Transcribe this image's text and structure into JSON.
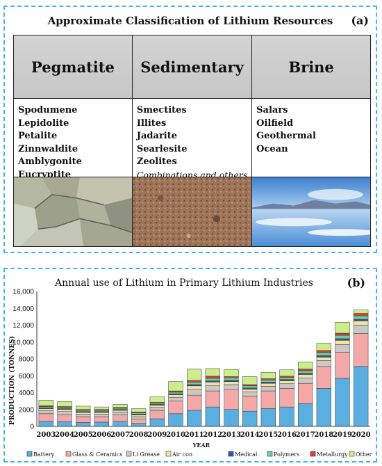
{
  "panel_a": {
    "title": "Approximate Classification of Lithium Resources",
    "tag": "(a)",
    "columns": [
      {
        "header": "Pegmatite",
        "items": [
          "Spodumene",
          "Lepidolite",
          "Petalite",
          "Zinnwaldite",
          "Amblygonite",
          "Eucryptite"
        ],
        "note": "",
        "image": "mineral-rocks-photo"
      },
      {
        "header": "Sedimentary",
        "items": [
          "Smectites",
          "Illites",
          "Jadarite",
          "Searlesite",
          "Zeolites"
        ],
        "note": "Combinations and others",
        "image": "soil-photo"
      },
      {
        "header": "Brine",
        "items": [
          "Salars",
          "Oilfield",
          "Geothermal",
          "Ocean"
        ],
        "note": "",
        "image": "salt-flat-photo"
      }
    ]
  },
  "panel_b": {
    "tag": "(b)"
  },
  "chart_data": {
    "type": "bar",
    "stacked": true,
    "title": "Annual use of Lithium in Primary Lithium Industries",
    "xlabel": "YEAR",
    "ylabel": "PRODUCTION (TONNES)",
    "ylim": [
      0,
      16000
    ],
    "yticks": [
      "0",
      "2000",
      "4000",
      "6000",
      "8000",
      "10,000",
      "12,000",
      "14,000",
      "16,000"
    ],
    "categories": [
      "2003",
      "2004",
      "2005",
      "2006",
      "2007",
      "2008",
      "2009",
      "2010",
      "2011",
      "2012",
      "2013",
      "2014",
      "2015",
      "2016",
      "2017",
      "2018",
      "2019",
      "2020"
    ],
    "legend_position": "bottom",
    "series": [
      {
        "name": "Battery",
        "color": "#5aafe0",
        "values": [
          600,
          550,
          450,
          500,
          600,
          350,
          900,
          1500,
          1900,
          2300,
          2000,
          1800,
          2100,
          2300,
          2700,
          4500,
          5700,
          7100
        ]
      },
      {
        "name": "Glass & Ceramics",
        "color": "#f4a8a8",
        "values": [
          900,
          850,
          700,
          650,
          750,
          500,
          1000,
          1500,
          1800,
          1900,
          2400,
          1800,
          2100,
          2200,
          2400,
          2600,
          3100,
          3900
        ]
      },
      {
        "name": "Li Grease",
        "color": "#c9c9c9",
        "values": [
          350,
          350,
          300,
          300,
          350,
          300,
          350,
          450,
          700,
          650,
          550,
          500,
          550,
          550,
          650,
          700,
          900,
          1000
        ]
      },
      {
        "name": "Air con",
        "color": "#f7e39d",
        "values": [
          250,
          250,
          200,
          200,
          200,
          200,
          250,
          300,
          400,
          400,
          350,
          300,
          350,
          350,
          400,
          400,
          500,
          500
        ]
      },
      {
        "name": "Medical",
        "color": "#2f5aa8",
        "values": [
          100,
          100,
          100,
          100,
          100,
          100,
          100,
          100,
          150,
          150,
          150,
          150,
          150,
          150,
          150,
          200,
          200,
          200
        ]
      },
      {
        "name": "Polymers",
        "color": "#6ed0a0",
        "values": [
          150,
          150,
          150,
          150,
          150,
          150,
          150,
          200,
          300,
          300,
          300,
          250,
          250,
          250,
          300,
          350,
          400,
          400
        ]
      },
      {
        "name": "Metallurgy",
        "color": "#e03a3a",
        "values": [
          100,
          100,
          100,
          100,
          100,
          100,
          100,
          150,
          200,
          250,
          150,
          150,
          150,
          150,
          200,
          250,
          250,
          300
        ]
      },
      {
        "name": "Other",
        "color": "#c9ee8a",
        "values": [
          650,
          600,
          400,
          300,
          350,
          400,
          650,
          1100,
          1350,
          900,
          850,
          950,
          750,
          750,
          850,
          850,
          1300,
          400
        ]
      }
    ]
  }
}
